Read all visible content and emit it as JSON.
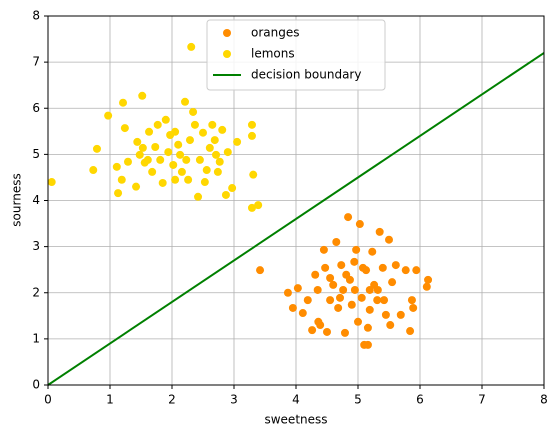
{
  "chart_data": {
    "type": "scatter",
    "xlabel": "sweetness",
    "ylabel": "sourness",
    "xlim": [
      0,
      8
    ],
    "ylim": [
      0,
      8
    ],
    "xticks": [
      0,
      1,
      2,
      3,
      4,
      5,
      6,
      7,
      8
    ],
    "yticks": [
      0,
      1,
      2,
      3,
      4,
      5,
      6,
      7,
      8
    ],
    "grid": true,
    "legend": "upper center",
    "series": [
      {
        "name": "oranges",
        "color": "#ff8c00",
        "type": "scatter",
        "x": [
          3.42,
          3.87,
          3.95,
          4.03,
          4.11,
          4.19,
          4.26,
          4.31,
          4.35,
          4.39,
          4.45,
          4.47,
          4.5,
          4.55,
          4.6,
          4.65,
          4.68,
          4.73,
          4.76,
          4.79,
          4.84,
          4.87,
          4.9,
          4.94,
          4.97,
          5.0,
          5.03,
          5.06,
          5.1,
          5.13,
          5.16,
          5.19,
          5.23,
          5.26,
          5.31,
          5.35,
          5.4,
          5.45,
          5.5,
          5.52,
          5.55,
          5.61,
          5.69,
          5.77,
          5.84,
          5.87,
          5.89,
          5.94,
          6.11,
          6.13,
          4.36,
          4.55,
          4.71,
          4.81,
          4.95,
          5.08,
          5.19,
          5.16,
          5.32,
          5.42
        ],
        "y": [
          2.49,
          2.0,
          1.67,
          2.1,
          1.56,
          1.84,
          1.19,
          2.39,
          2.06,
          1.3,
          2.93,
          2.54,
          1.15,
          1.84,
          2.17,
          3.1,
          1.67,
          2.6,
          2.06,
          1.13,
          3.64,
          2.28,
          1.74,
          2.67,
          2.93,
          1.37,
          3.49,
          1.89,
          0.87,
          2.49,
          0.87,
          1.63,
          2.89,
          2.17,
          1.84,
          3.32,
          2.54,
          1.52,
          3.15,
          1.3,
          2.23,
          2.6,
          1.52,
          2.49,
          1.17,
          1.84,
          1.67,
          2.49,
          2.13,
          2.28,
          1.37,
          2.32,
          1.89,
          2.39,
          2.06,
          2.54,
          2.06,
          1.24,
          2.06,
          1.84
        ]
      },
      {
        "name": "lemons",
        "color": "#ffd700",
        "type": "scatter",
        "x": [
          0.06,
          0.73,
          0.97,
          0.79,
          1.21,
          1.52,
          2.31,
          2.21,
          1.24,
          1.13,
          1.11,
          1.29,
          1.42,
          1.19,
          1.44,
          1.56,
          1.63,
          1.73,
          1.77,
          1.85,
          1.9,
          1.97,
          2.05,
          2.1,
          2.16,
          2.23,
          2.29,
          2.34,
          2.37,
          2.42,
          2.45,
          2.5,
          2.56,
          2.61,
          2.65,
          2.71,
          2.74,
          2.81,
          2.87,
          2.97,
          3.05,
          3.29,
          3.29,
          3.31,
          3.29,
          3.39,
          1.48,
          1.53,
          1.68,
          1.81,
          1.94,
          2.02,
          2.13,
          2.26,
          2.53,
          2.77,
          2.9,
          2.05,
          2.69,
          1.61
        ],
        "y": [
          4.4,
          4.66,
          5.84,
          5.12,
          6.12,
          6.27,
          7.33,
          6.14,
          5.57,
          4.16,
          4.73,
          4.84,
          4.3,
          4.45,
          5.27,
          4.82,
          5.49,
          5.16,
          5.64,
          4.38,
          5.75,
          5.42,
          4.45,
          5.21,
          4.62,
          4.88,
          5.31,
          5.92,
          5.64,
          4.08,
          4.88,
          5.47,
          4.66,
          5.14,
          5.64,
          4.99,
          4.62,
          5.53,
          4.12,
          4.27,
          5.27,
          5.64,
          5.4,
          4.56,
          3.84,
          3.9,
          4.99,
          5.14,
          4.62,
          4.88,
          5.05,
          4.77,
          4.99,
          4.45,
          4.4,
          4.84,
          5.05,
          5.49,
          5.31,
          4.88
        ]
      },
      {
        "name": "decision boundary",
        "color": "#008000",
        "type": "line",
        "x": [
          0,
          8
        ],
        "y": [
          0,
          7.2
        ]
      }
    ]
  }
}
